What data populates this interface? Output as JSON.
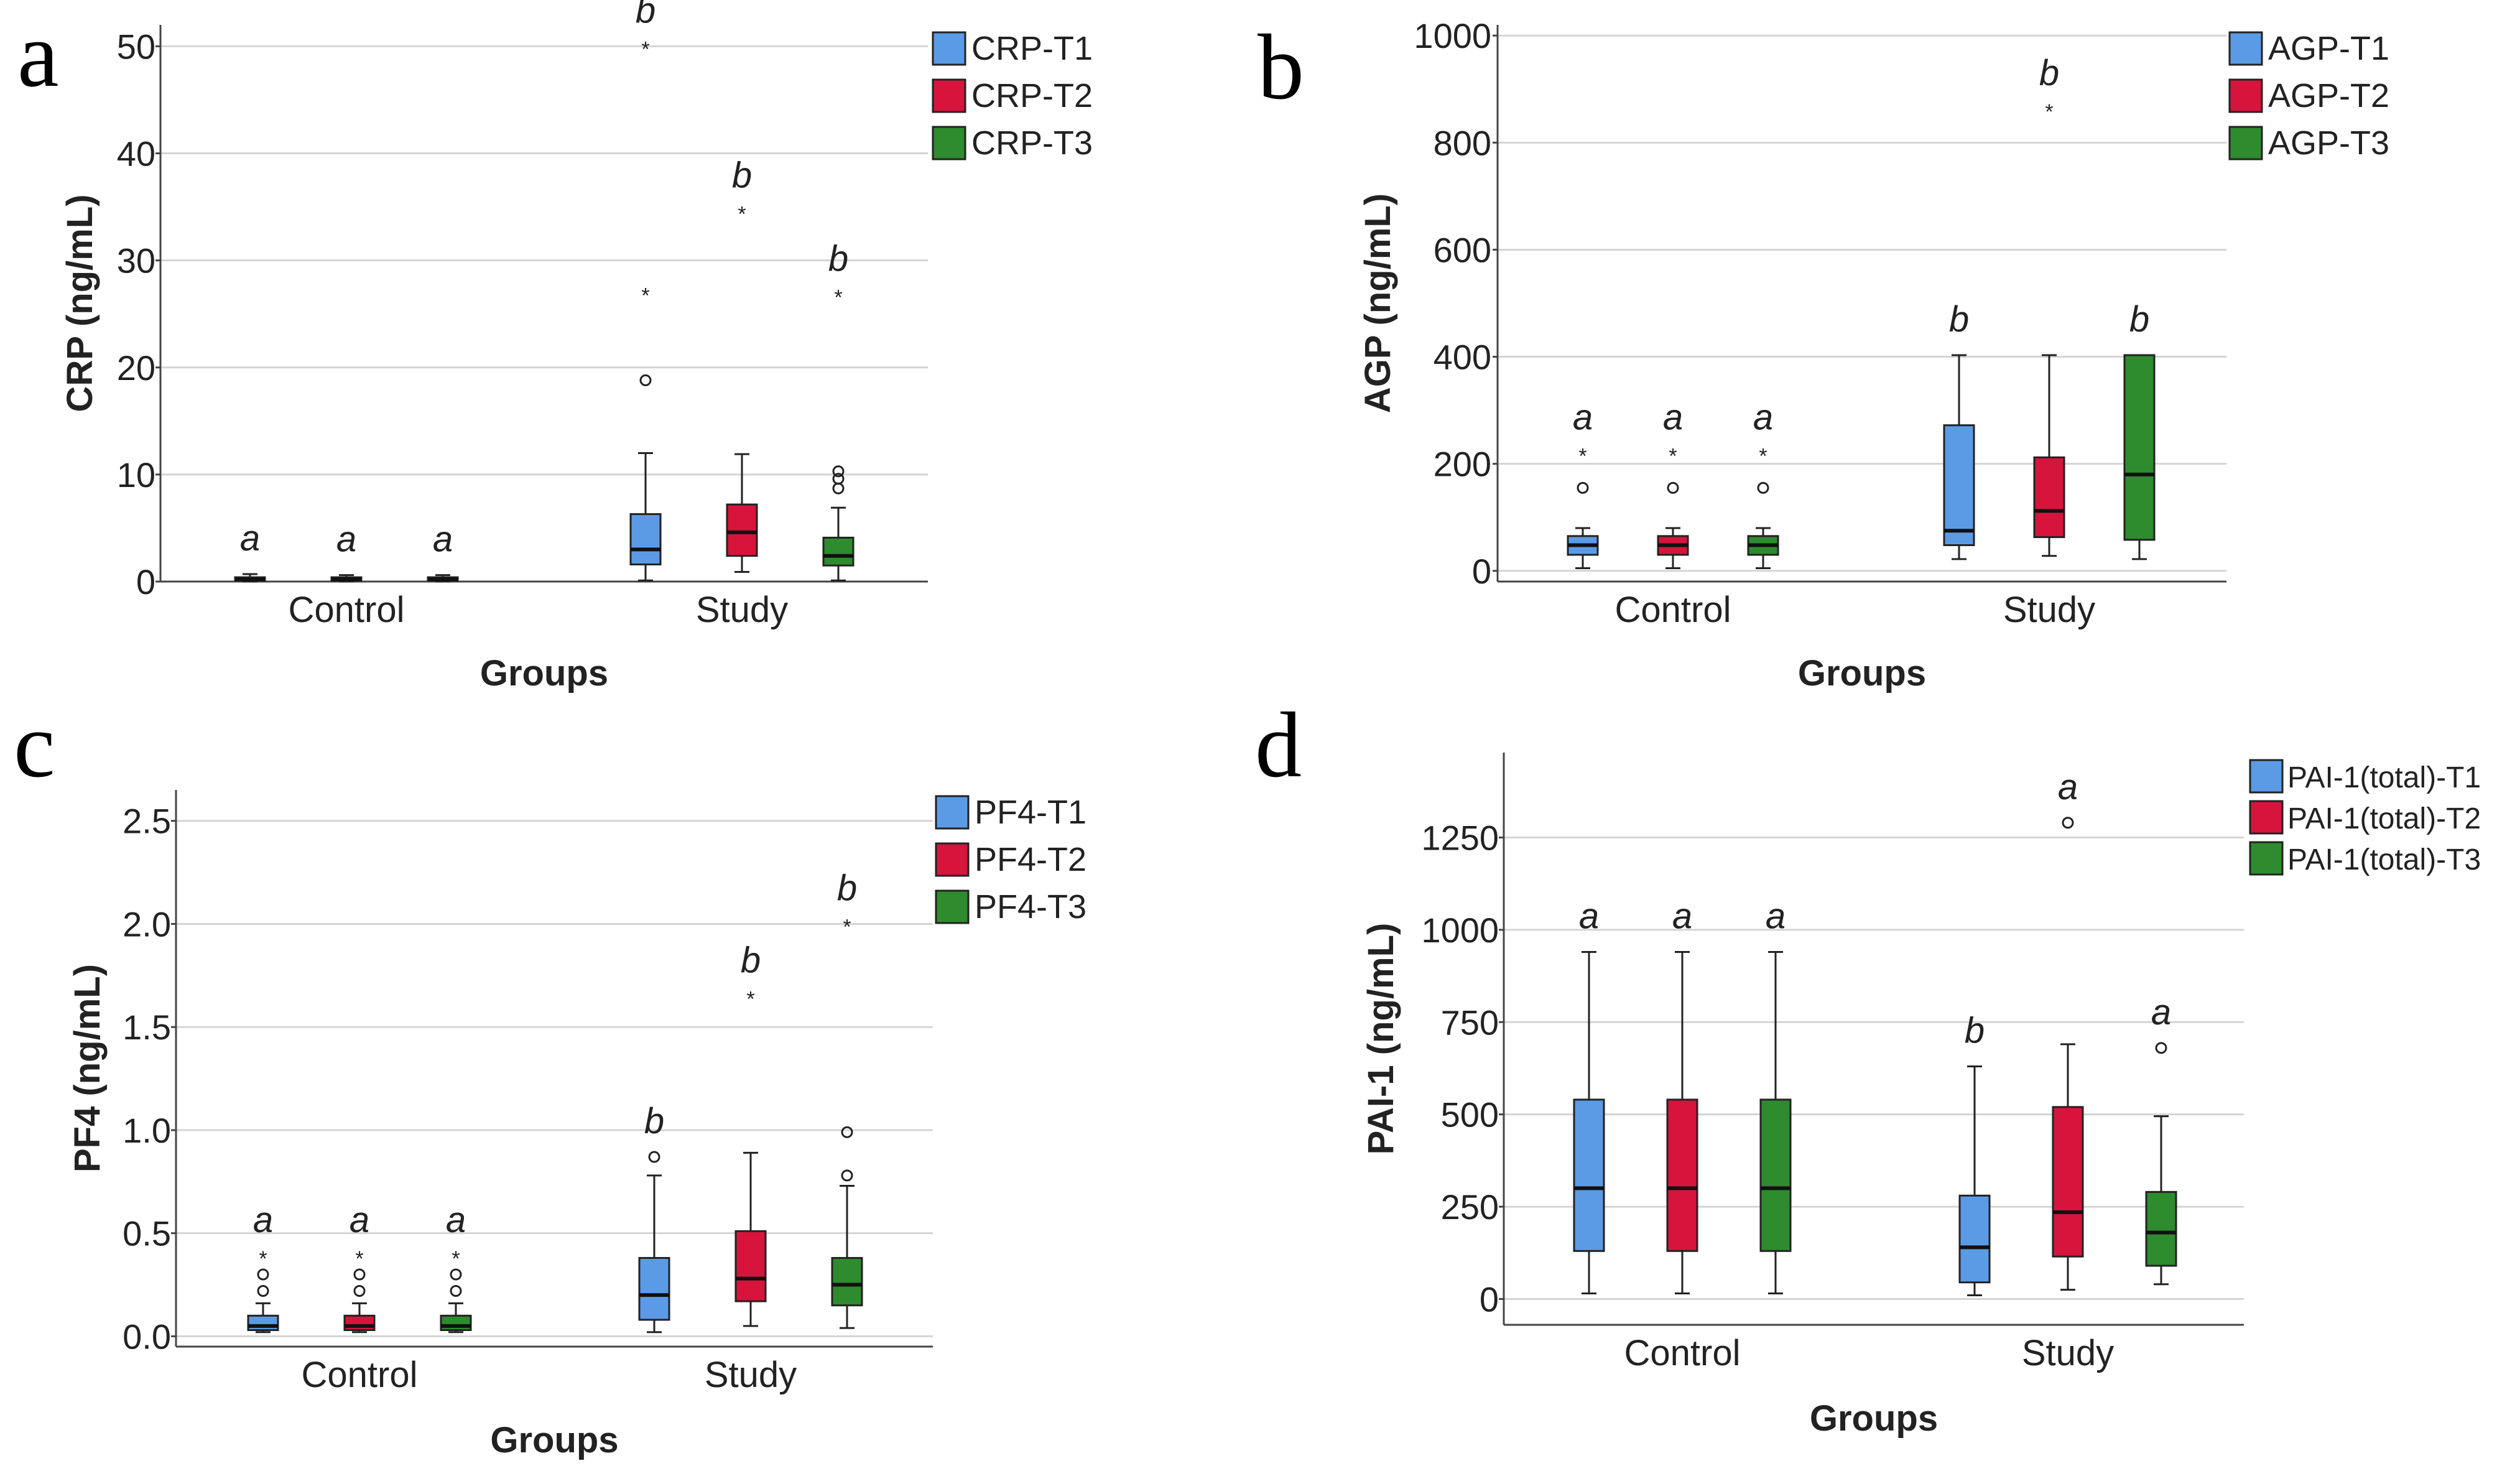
{
  "chart_data": [
    {
      "panel": "a",
      "type": "box",
      "ylabel": "CRP (ng/mL)",
      "xlabel": "Groups",
      "categories": [
        "Control",
        "Study"
      ],
      "ylim": [
        0,
        52
      ],
      "yticks": [
        0,
        10,
        20,
        30,
        40,
        50
      ],
      "grid": true,
      "legend_position": "top-right",
      "series": [
        {
          "name": "CRP-T1",
          "color": "#5b9be6",
          "boxes": [
            {
              "min": 0.0,
              "q1": 0.1,
              "median": 0.2,
              "q3": 0.4,
              "max": 0.7,
              "outliers": [],
              "extremes": [],
              "label": "a"
            },
            {
              "min": 0.1,
              "q1": 1.6,
              "median": 3.0,
              "q3": 6.3,
              "max": 12.0,
              "outliers": [
                18.8
              ],
              "extremes": [
                27.0,
                50.0
              ],
              "label": "b"
            }
          ]
        },
        {
          "name": "CRP-T2",
          "color": "#d7143c",
          "boxes": [
            {
              "min": 0.0,
              "q1": 0.1,
              "median": 0.2,
              "q3": 0.4,
              "max": 0.6,
              "outliers": [],
              "extremes": [],
              "label": "a"
            },
            {
              "min": 0.9,
              "q1": 2.4,
              "median": 4.6,
              "q3": 7.2,
              "max": 11.9,
              "outliers": [],
              "extremes": [
                34.6
              ],
              "label": "b"
            }
          ]
        },
        {
          "name": "CRP-T3",
          "color": "#2e8b2e",
          "boxes": [
            {
              "min": 0.0,
              "q1": 0.1,
              "median": 0.2,
              "q3": 0.4,
              "max": 0.6,
              "outliers": [],
              "extremes": [],
              "label": "a"
            },
            {
              "min": 0.1,
              "q1": 1.5,
              "median": 2.4,
              "q3": 4.1,
              "max": 6.9,
              "outliers": [
                8.7,
                9.6,
                10.3
              ],
              "extremes": [
                26.8
              ],
              "label": "b"
            }
          ]
        }
      ]
    },
    {
      "panel": "b",
      "type": "box",
      "ylabel": "AGP (ng/mL)",
      "xlabel": "Groups",
      "categories": [
        "Control",
        "Study"
      ],
      "ylim": [
        -20,
        1020
      ],
      "yticks": [
        0,
        200,
        400,
        600,
        800,
        1000
      ],
      "grid": true,
      "legend_position": "top-right",
      "series": [
        {
          "name": "AGP-T1",
          "color": "#5b9be6",
          "boxes": [
            {
              "min": 5,
              "q1": 30,
              "median": 48,
              "q3": 65,
              "max": 80,
              "outliers": [
                155
              ],
              "extremes": [
                220
              ],
              "label": "a"
            },
            {
              "min": 22,
              "q1": 48,
              "median": 75,
              "q3": 272,
              "max": 403,
              "outliers": [],
              "extremes": [],
              "label": "b"
            }
          ]
        },
        {
          "name": "AGP-T2",
          "color": "#d7143c",
          "boxes": [
            {
              "min": 5,
              "q1": 30,
              "median": 48,
              "q3": 65,
              "max": 80,
              "outliers": [
                155
              ],
              "extremes": [
                220
              ],
              "label": "a"
            },
            {
              "min": 28,
              "q1": 63,
              "median": 112,
              "q3": 212,
              "max": 403,
              "outliers": [],
              "extremes": [
                863
              ],
              "label": "b"
            }
          ]
        },
        {
          "name": "AGP-T3",
          "color": "#2e8b2e",
          "boxes": [
            {
              "min": 5,
              "q1": 30,
              "median": 48,
              "q3": 65,
              "max": 80,
              "outliers": [
                155
              ],
              "extremes": [
                220
              ],
              "label": "a"
            },
            {
              "min": 22,
              "q1": 58,
              "median": 180,
              "q3": 403,
              "max": 403,
              "outliers": [],
              "extremes": [],
              "label": "b"
            }
          ]
        }
      ]
    },
    {
      "panel": "c",
      "type": "box",
      "ylabel": "PF4 (ng/mL)",
      "xlabel": "Groups",
      "categories": [
        "Control",
        "Study"
      ],
      "ylim": [
        -0.05,
        2.65
      ],
      "yticks": [
        "0.0",
        "0.5",
        "1.0",
        "1.5",
        "2.0",
        "2.5"
      ],
      "grid": true,
      "legend_position": "top-right",
      "series": [
        {
          "name": "PF4-T1",
          "color": "#5b9be6",
          "boxes": [
            {
              "min": 0.02,
              "q1": 0.03,
              "median": 0.05,
              "q3": 0.1,
              "max": 0.16,
              "outliers": [
                0.22,
                0.3
              ],
              "extremes": [
                0.39
              ],
              "label": "a"
            },
            {
              "min": 0.02,
              "q1": 0.08,
              "median": 0.2,
              "q3": 0.38,
              "max": 0.78,
              "outliers": [
                0.87
              ],
              "extremes": [],
              "label": "b"
            }
          ]
        },
        {
          "name": "PF4-T2",
          "color": "#d7143c",
          "boxes": [
            {
              "min": 0.02,
              "q1": 0.03,
              "median": 0.05,
              "q3": 0.1,
              "max": 0.16,
              "outliers": [
                0.22,
                0.3
              ],
              "extremes": [
                0.39
              ],
              "label": "a"
            },
            {
              "min": 0.05,
              "q1": 0.17,
              "median": 0.28,
              "q3": 0.51,
              "max": 0.89,
              "outliers": [],
              "extremes": [
                1.65
              ],
              "label": "b"
            }
          ]
        },
        {
          "name": "PF4-T3",
          "color": "#2e8b2e",
          "boxes": [
            {
              "min": 0.02,
              "q1": 0.03,
              "median": 0.05,
              "q3": 0.1,
              "max": 0.16,
              "outliers": [
                0.22,
                0.3
              ],
              "extremes": [
                0.39
              ],
              "label": "a"
            },
            {
              "min": 0.04,
              "q1": 0.15,
              "median": 0.25,
              "q3": 0.38,
              "max": 0.73,
              "outliers": [
                0.78,
                0.99
              ],
              "extremes": [
                2.0
              ],
              "label": "b"
            }
          ]
        }
      ]
    },
    {
      "panel": "d",
      "type": "box",
      "ylabel": "PAI-1 (ng/mL)",
      "xlabel": "Groups",
      "categories": [
        "Control",
        "Study"
      ],
      "ylim": [
        -70,
        1480
      ],
      "yticks": [
        0,
        250,
        500,
        750,
        1000,
        1250
      ],
      "grid": true,
      "legend_position": "top-right",
      "series": [
        {
          "name": "PAI-1(total)-T1",
          "color": "#5b9be6",
          "boxes": [
            {
              "min": 15,
              "q1": 130,
              "median": 300,
              "q3": 540,
              "max": 940,
              "outliers": [],
              "extremes": [],
              "label": "a"
            },
            {
              "min": 10,
              "q1": 45,
              "median": 140,
              "q3": 280,
              "max": 630,
              "outliers": [],
              "extremes": [],
              "label": "b"
            }
          ]
        },
        {
          "name": "PAI-1(total)-T2",
          "color": "#d7143c",
          "boxes": [
            {
              "min": 15,
              "q1": 130,
              "median": 300,
              "q3": 540,
              "max": 940,
              "outliers": [],
              "extremes": [],
              "label": "a"
            },
            {
              "min": 25,
              "q1": 115,
              "median": 235,
              "q3": 520,
              "max": 690,
              "outliers": [
                1290
              ],
              "extremes": [],
              "label": "a"
            }
          ]
        },
        {
          "name": "PAI-1(total)-T3",
          "color": "#2e8b2e",
          "boxes": [
            {
              "min": 15,
              "q1": 130,
              "median": 300,
              "q3": 540,
              "max": 940,
              "outliers": [],
              "extremes": [],
              "label": "a"
            },
            {
              "min": 40,
              "q1": 90,
              "median": 180,
              "q3": 290,
              "max": 495,
              "outliers": [
                680
              ],
              "extremes": [],
              "label": "a"
            }
          ]
        }
      ]
    }
  ]
}
